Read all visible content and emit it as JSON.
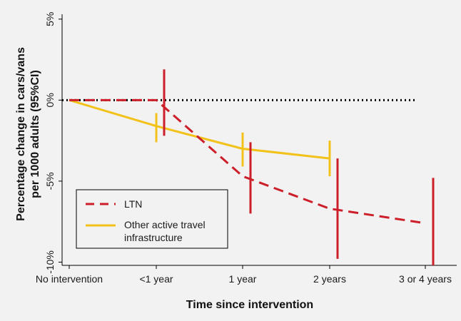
{
  "chart_data": {
    "type": "line",
    "xlabel": "Time since intervention",
    "ylabel_lines": [
      "Percentage change in cars/vans",
      "per 1000 adults (95%CI)"
    ],
    "categories": [
      "No intervention",
      "<1 year",
      "1 year",
      "2 years",
      "3 or 4 years"
    ],
    "y_ticks": [
      5,
      0,
      -5,
      -10
    ],
    "y_tick_labels": [
      "5%",
      "0%",
      "-5%",
      "-10%"
    ],
    "ylim": [
      -10.2,
      5.3
    ],
    "reference_line": 0,
    "legend_position": "bottom-left",
    "series": [
      {
        "name": "LTN",
        "color": "#cc1f2a",
        "style": "dashed",
        "points": [
          {
            "x": "No intervention",
            "y": 0
          },
          {
            "x": "<1 year",
            "y": 0,
            "lower": -2.2,
            "upper": 1.9
          },
          {
            "x": "1 year",
            "y": -4.7,
            "lower": -7.0,
            "upper": -2.6
          },
          {
            "x": "2 years",
            "y": -6.7,
            "lower": -9.8,
            "upper": -3.6
          },
          {
            "x": "3 or 4 years",
            "y": -7.6,
            "lower": -10.2,
            "upper": -4.8
          }
        ]
      },
      {
        "name": "Other active travel infrastructure",
        "legend_lines": [
          "Other active travel",
          "infrastructure"
        ],
        "color": "#f2c21b",
        "style": "solid",
        "points": [
          {
            "x": "No intervention",
            "y": 0
          },
          {
            "x": "<1 year",
            "y": -1.6,
            "lower": -2.6,
            "upper": -0.8
          },
          {
            "x": "1 year",
            "y": -3.0,
            "lower": -4.1,
            "upper": -2.0
          },
          {
            "x": "2 years",
            "y": -3.6,
            "lower": -4.7,
            "upper": -2.5
          }
        ]
      }
    ]
  }
}
